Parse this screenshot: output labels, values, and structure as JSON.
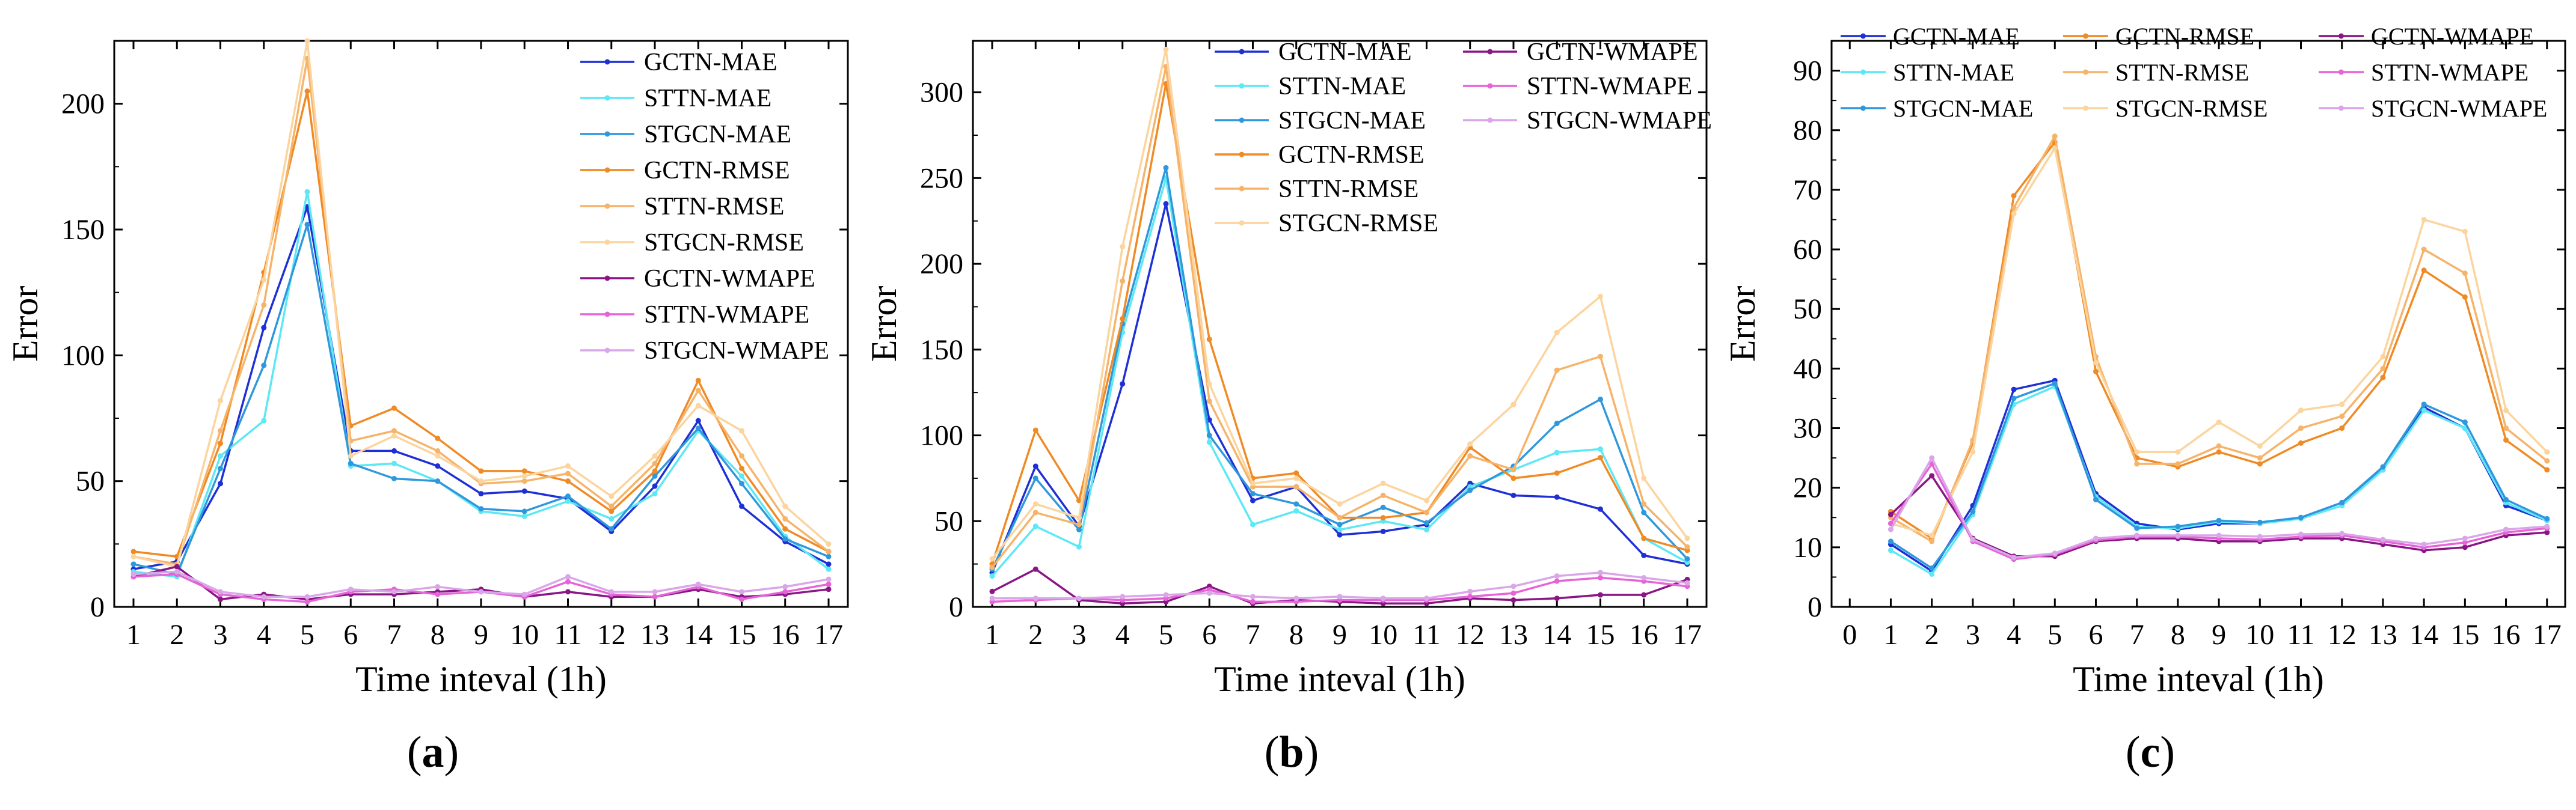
{
  "chart_data": [
    {
      "type": "line",
      "panel_label": "a",
      "xlabel": "Time inteval (1h)",
      "ylabel": "Error",
      "categories": [
        1,
        2,
        3,
        4,
        5,
        6,
        7,
        8,
        9,
        10,
        11,
        12,
        13,
        14,
        15,
        16,
        17
      ],
      "xticks": [
        "1",
        "2",
        "3",
        "4",
        "5",
        "6",
        "7",
        "8",
        "9",
        "10",
        "11",
        "12",
        "13",
        "14",
        "15",
        "16",
        "17"
      ],
      "ylim": [
        0,
        225
      ],
      "yticks": [
        0,
        50,
        100,
        150,
        200
      ],
      "ytick_labels": [
        "0",
        "50",
        "100",
        "150",
        "200"
      ],
      "legend_position": "top-right",
      "series": [
        {
          "name": "GCTN-MAE",
          "color": "#1f2fd6",
          "values": [
            15,
            18,
            49,
            111,
            159,
            62,
            62,
            56,
            45,
            46,
            43,
            30,
            48,
            74,
            40,
            26,
            17
          ]
        },
        {
          "name": "STTN-MAE",
          "color": "#5ce8f5",
          "values": [
            14,
            12,
            60,
            74,
            165,
            56,
            57,
            50,
            38,
            36,
            42,
            35,
            45,
            70,
            52,
            28,
            15
          ]
        },
        {
          "name": "STGCN-MAE",
          "color": "#2f98dc",
          "values": [
            17,
            13,
            55,
            96,
            152,
            57,
            51,
            50,
            39,
            38,
            44,
            31,
            52,
            71,
            49,
            27,
            20
          ]
        },
        {
          "name": "GCTN-RMSE",
          "color": "#f08a24",
          "values": [
            22,
            20,
            65,
            133,
            205,
            72,
            79,
            67,
            54,
            54,
            50,
            38,
            54,
            90,
            55,
            31,
            22
          ]
        },
        {
          "name": "STTN-RMSE",
          "color": "#f6b36a",
          "values": [
            20,
            17,
            70,
            120,
            218,
            66,
            70,
            62,
            49,
            50,
            53,
            40,
            57,
            86,
            60,
            35,
            22
          ]
        },
        {
          "name": "STGCN-RMSE",
          "color": "#fbd49e",
          "values": [
            20,
            16,
            82,
            130,
            225,
            60,
            68,
            60,
            50,
            52,
            56,
            44,
            60,
            80,
            70,
            40,
            25
          ]
        },
        {
          "name": "GCTN-WMAPE",
          "color": "#8a1585",
          "values": [
            12,
            16,
            3,
            5,
            3,
            5,
            5,
            6,
            7,
            4,
            6,
            4,
            4,
            7,
            4,
            5,
            7
          ]
        },
        {
          "name": "STTN-WMAPE",
          "color": "#e663d8",
          "values": [
            12,
            13,
            5,
            3,
            2,
            6,
            7,
            5,
            6,
            4,
            10,
            5,
            4,
            8,
            3,
            6,
            9
          ]
        },
        {
          "name": "STGCN-WMAPE",
          "color": "#d9a6e8",
          "values": [
            13,
            14,
            6,
            4,
            4,
            7,
            6,
            8,
            6,
            5,
            12,
            6,
            6,
            9,
            6,
            8,
            11
          ]
        }
      ]
    },
    {
      "type": "line",
      "panel_label": "b",
      "xlabel": "Time inteval (1h)",
      "ylabel": "Error",
      "categories": [
        1,
        2,
        3,
        4,
        5,
        6,
        7,
        8,
        9,
        10,
        11,
        12,
        13,
        14,
        15,
        16,
        17
      ],
      "xticks": [
        "1",
        "2",
        "3",
        "4",
        "5",
        "6",
        "7",
        "8",
        "9",
        "10",
        "11",
        "12",
        "13",
        "14",
        "15",
        "16",
        "17"
      ],
      "ylim": [
        0,
        330
      ],
      "yticks": [
        0,
        50,
        100,
        150,
        200,
        250,
        300
      ],
      "ytick_labels": [
        "0",
        "50",
        "100",
        "150",
        "200",
        "250",
        "300"
      ],
      "legend_position": "top",
      "series": [
        {
          "name": "GCTN-MAE",
          "color": "#1f2fd6",
          "values": [
            20,
            82,
            47,
            130,
            235,
            109,
            62,
            70,
            42,
            44,
            48,
            72,
            65,
            64,
            57,
            30,
            25
          ]
        },
        {
          "name": "STTN-MAE",
          "color": "#5ce8f5",
          "values": [
            18,
            47,
            35,
            160,
            250,
            96,
            48,
            56,
            45,
            50,
            45,
            70,
            80,
            90,
            92,
            40,
            26
          ]
        },
        {
          "name": "STGCN-MAE",
          "color": "#2f98dc",
          "values": [
            22,
            75,
            45,
            165,
            256,
            100,
            66,
            60,
            48,
            58,
            49,
            68,
            82,
            107,
            121,
            55,
            28
          ]
        },
        {
          "name": "GCTN-RMSE",
          "color": "#f08a24",
          "values": [
            25,
            103,
            62,
            168,
            305,
            156,
            75,
            78,
            52,
            52,
            55,
            93,
            75,
            78,
            87,
            40,
            33
          ]
        },
        {
          "name": "STTN-RMSE",
          "color": "#f6b36a",
          "values": [
            23,
            55,
            48,
            190,
            315,
            120,
            70,
            70,
            52,
            65,
            55,
            88,
            80,
            138,
            146,
            60,
            35
          ]
        },
        {
          "name": "STGCN-RMSE",
          "color": "#fbd49e",
          "values": [
            28,
            60,
            52,
            210,
            325,
            130,
            72,
            75,
            60,
            72,
            62,
            95,
            118,
            160,
            181,
            75,
            40
          ]
        },
        {
          "name": "GCTN-WMAPE",
          "color": "#8a1585",
          "values": [
            9,
            22,
            4,
            2,
            3,
            12,
            2,
            4,
            3,
            2,
            2,
            5,
            4,
            5,
            7,
            7,
            16
          ]
        },
        {
          "name": "STTN-WMAPE",
          "color": "#e663d8",
          "values": [
            3,
            4,
            5,
            4,
            5,
            10,
            3,
            3,
            4,
            4,
            4,
            6,
            8,
            15,
            17,
            15,
            12
          ]
        },
        {
          "name": "STGCN-WMAPE",
          "color": "#d9a6e8",
          "values": [
            5,
            5,
            5,
            6,
            7,
            8,
            6,
            5,
            6,
            5,
            5,
            9,
            12,
            18,
            20,
            17,
            14
          ]
        }
      ]
    },
    {
      "type": "line",
      "panel_label": "c",
      "xlabel": "Time inteval (1h)",
      "ylabel": "Error",
      "categories": [
        1,
        2,
        3,
        4,
        5,
        6,
        7,
        8,
        9,
        10,
        11,
        12,
        13,
        14,
        15,
        16,
        17
      ],
      "xticks": [
        "0",
        "1",
        "2",
        "3",
        "4",
        "5",
        "6",
        "7",
        "8",
        "9",
        "10",
        "11",
        "12",
        "13",
        "14",
        "15",
        "16",
        "17"
      ],
      "ylim": [
        0,
        95
      ],
      "yticks": [
        0,
        10,
        20,
        30,
        40,
        50,
        60,
        70,
        80,
        90
      ],
      "ytick_labels": [
        "0",
        "10",
        "20",
        "30",
        "40",
        "50",
        "60",
        "70",
        "80",
        "90"
      ],
      "legend_position": "top",
      "series": [
        {
          "name": "GCTN-MAE",
          "color": "#1f2fd6",
          "values": [
            10.5,
            6,
            17,
            36.5,
            38,
            19,
            14,
            13,
            14,
            14,
            15,
            17.5,
            23,
            33.5,
            30,
            17,
            14.5
          ]
        },
        {
          "name": "STTN-MAE",
          "color": "#5ce8f5",
          "values": [
            9.5,
            5.5,
            15.5,
            34,
            37,
            18.5,
            13.5,
            13.2,
            14.3,
            14,
            14.8,
            17,
            23,
            33,
            30,
            17.5,
            14.5
          ]
        },
        {
          "name": "STGCN-MAE",
          "color": "#2f98dc",
          "values": [
            11,
            6.5,
            16,
            35,
            37.5,
            18,
            13.2,
            13.5,
            14.5,
            14.2,
            15,
            17.5,
            23.5,
            34,
            31,
            18,
            14.8
          ]
        },
        {
          "name": "GCTN-RMSE",
          "color": "#f08a24",
          "values": [
            16,
            11.5,
            27.5,
            69,
            78,
            39.5,
            25,
            23.5,
            26,
            24,
            27.5,
            30,
            38.5,
            56.5,
            52,
            28,
            23
          ]
        },
        {
          "name": "STTN-RMSE",
          "color": "#f6b36a",
          "values": [
            15,
            11,
            28,
            67,
            79,
            42,
            24,
            24,
            27,
            25,
            30,
            32,
            40,
            60,
            56,
            30,
            24.5
          ]
        },
        {
          "name": "STGCN-RMSE",
          "color": "#fbd49e",
          "values": [
            14,
            12,
            26,
            66,
            77,
            41,
            26,
            26,
            31,
            27,
            33,
            34,
            42,
            65,
            63,
            33,
            26
          ]
        },
        {
          "name": "GCTN-WMAPE",
          "color": "#8a1585",
          "values": [
            15.5,
            22,
            11.5,
            8.5,
            8.5,
            11,
            11.5,
            11.5,
            11,
            11,
            11.5,
            11.5,
            10.5,
            9.5,
            10,
            12,
            12.5
          ]
        },
        {
          "name": "STTN-WMAPE",
          "color": "#e663d8",
          "values": [
            14,
            24,
            11,
            8,
            8.8,
            11.2,
            11.8,
            11.8,
            11.5,
            11.3,
            11.8,
            12,
            11,
            10,
            10.8,
            12.5,
            13.2
          ]
        },
        {
          "name": "STGCN-WMAPE",
          "color": "#d9a6e8",
          "values": [
            13,
            25,
            11.3,
            8.3,
            9,
            11.5,
            12,
            12,
            12,
            11.8,
            12.2,
            12.3,
            11.3,
            10.5,
            11.5,
            13,
            13.5
          ]
        }
      ]
    }
  ]
}
